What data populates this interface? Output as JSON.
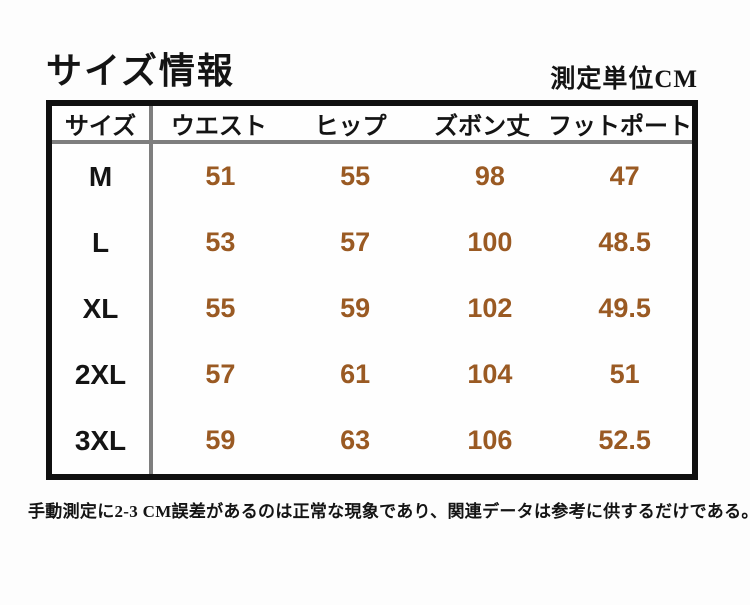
{
  "page": {
    "title": "サイズ情報",
    "unit_label": "測定単位CM",
    "footer_note": "手動測定に2-3 CM誤差があるのは正常な現象であり、関連データは参考に供するだけである。"
  },
  "colors": {
    "value_text": "#9a5a23",
    "table_border": "#101010",
    "divider": "#7e7e7e"
  },
  "chart_data": {
    "type": "table",
    "title": "サイズ情報",
    "unit": "CM",
    "columns": [
      "サイズ",
      "ウエスト",
      "ヒップ",
      "ズボン丈",
      "フットポート"
    ],
    "rows": [
      [
        "M",
        "51",
        "55",
        "98",
        "47"
      ],
      [
        "L",
        "53",
        "57",
        "100",
        "48.5"
      ],
      [
        "XL",
        "55",
        "59",
        "102",
        "49.5"
      ],
      [
        "2XL",
        "57",
        "61",
        "104",
        "51"
      ],
      [
        "3XL",
        "59",
        "63",
        "106",
        "52.5"
      ]
    ]
  }
}
